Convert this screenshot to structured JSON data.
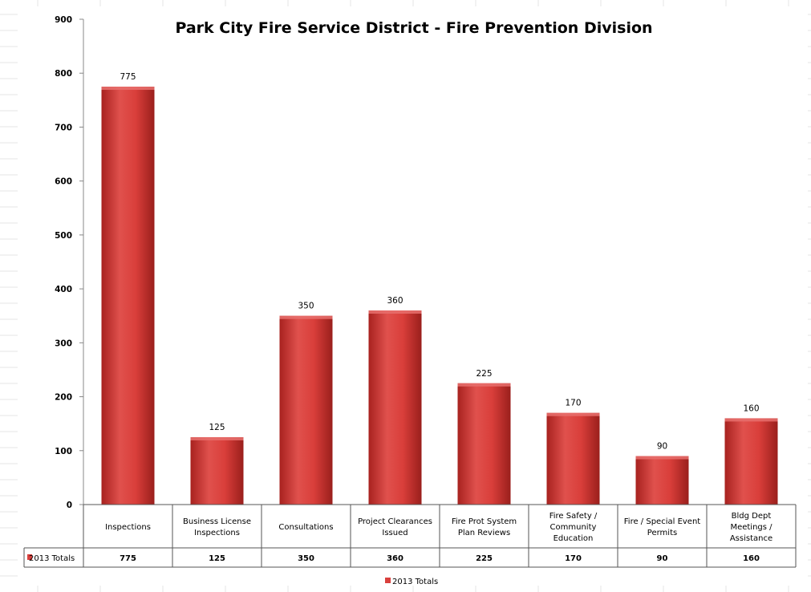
{
  "chart_data": {
    "type": "bar",
    "title": "Park City Fire Service District - Fire Prevention Division",
    "categories": [
      [
        "Inspections"
      ],
      [
        "Business License",
        "Inspections"
      ],
      [
        "Consultations"
      ],
      [
        "Project Clearances",
        "Issued"
      ],
      [
        "Fire Prot System",
        "Plan Reviews"
      ],
      [
        "Fire Safety /",
        "Community",
        "Education"
      ],
      [
        "Fire / Special Event",
        "Permits"
      ],
      [
        "Bldg Dept",
        "Meetings /",
        "Assistance"
      ]
    ],
    "series": [
      {
        "name": "2013 Totals",
        "values": [
          775,
          125,
          350,
          360,
          225,
          170,
          90,
          160
        ]
      }
    ],
    "ylim": [
      0,
      900
    ],
    "yticks": [
      0,
      100,
      200,
      300,
      400,
      500,
      600,
      700,
      800,
      900
    ],
    "data_labels": true,
    "data_table": true,
    "legend_position": "bottom",
    "grid": false,
    "colors": {
      "bar": "#d9403d",
      "bar_dark": "#9e2420",
      "bar_top": "#e8706d"
    }
  }
}
